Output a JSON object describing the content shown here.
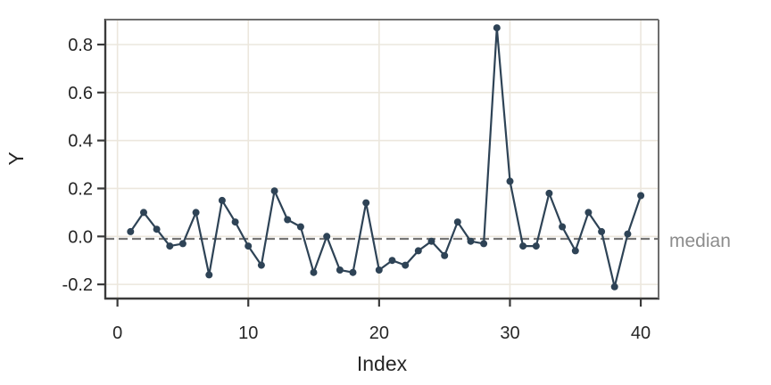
{
  "figure": {
    "background": "#ffffff"
  },
  "chart_data": {
    "type": "line",
    "title": "",
    "xlabel": "Index",
    "ylabel": "Y",
    "x": [
      1,
      2,
      3,
      4,
      5,
      6,
      7,
      8,
      9,
      10,
      11,
      12,
      13,
      14,
      15,
      16,
      17,
      18,
      19,
      20,
      21,
      22,
      23,
      24,
      25,
      26,
      27,
      28,
      29,
      30,
      31,
      32,
      33,
      34,
      35,
      36,
      37,
      38,
      39,
      40
    ],
    "y": [
      0.02,
      0.1,
      0.03,
      -0.04,
      -0.03,
      0.1,
      -0.16,
      0.15,
      0.06,
      -0.04,
      -0.12,
      0.19,
      0.07,
      0.04,
      -0.15,
      0.0,
      -0.14,
      -0.15,
      0.14,
      -0.14,
      -0.1,
      -0.12,
      -0.06,
      -0.02,
      -0.08,
      0.06,
      -0.02,
      -0.03,
      0.87,
      0.23,
      -0.04,
      -0.04,
      0.18,
      0.04,
      -0.06,
      0.1,
      0.02,
      -0.21,
      0.01,
      0.17
    ],
    "marker": "circle",
    "median_value": -0.01,
    "median_label": "median",
    "median_line_style": "dashed",
    "xticks": [
      0,
      10,
      20,
      30,
      40
    ],
    "xtick_labels": [
      "0",
      "10",
      "20",
      "30",
      "40"
    ],
    "yticks": [
      -0.2,
      0.0,
      0.2,
      0.4,
      0.6,
      0.8
    ],
    "ytick_labels": [
      "-0.2",
      "0.0",
      "0.2",
      "0.4",
      "0.6",
      "0.8"
    ],
    "xlim": [
      -0.93,
      41.36
    ],
    "ylim": [
      -0.259,
      0.904
    ],
    "grid": true,
    "legend": false,
    "colors": {
      "series": "#2e4356",
      "grid": "#ece7dd",
      "median_line": "#757575",
      "median_text": "#8c8c8c",
      "axis_text": "#262626",
      "spine_dark": "#3a3a3a",
      "spine_light": "#6e6e6e",
      "background": "#ffffff"
    }
  }
}
